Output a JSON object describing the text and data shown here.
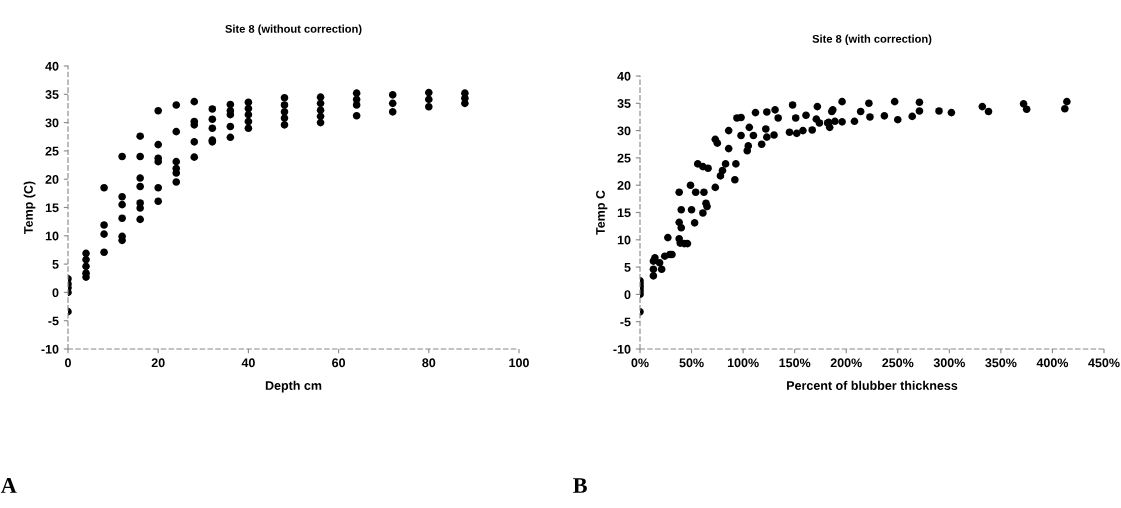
{
  "chart_data": [
    {
      "type": "scatter",
      "title": "Site 8 (without correction)",
      "xlabel": "Depth cm",
      "ylabel": "Temp (C)",
      "annotations": [
        "A"
      ],
      "marker": "circle",
      "grid": false,
      "xlim": [
        0,
        100
      ],
      "xticks": [
        0,
        20,
        40,
        60,
        80,
        100
      ],
      "ylim": [
        -10,
        40
      ],
      "yticks": [
        -10,
        -5,
        0,
        5,
        10,
        15,
        20,
        25,
        30,
        35,
        40
      ],
      "series": [
        {
          "color": "#000000",
          "x": [
            0,
            0,
            0,
            0,
            0,
            4,
            4,
            4,
            4,
            4,
            8,
            8,
            8,
            8,
            12,
            12,
            12,
            12,
            12,
            12,
            16,
            16,
            16,
            16,
            16,
            16,
            16,
            20,
            20,
            20,
            20,
            20,
            20,
            24,
            24,
            24,
            24,
            24,
            24,
            28,
            28,
            28,
            28,
            28,
            32,
            32,
            32,
            32,
            32,
            36,
            36,
            36,
            36,
            36,
            40,
            40,
            40,
            40,
            40,
            48,
            48,
            48,
            48,
            48,
            56,
            56,
            56,
            56,
            56,
            64,
            64,
            64,
            64,
            72,
            72,
            72,
            80,
            80,
            80,
            88,
            88,
            88
          ],
          "values": [
            -3.4,
            0,
            0.8,
            1.5,
            2.4,
            6.9,
            5.8,
            4.6,
            3.4,
            2.7,
            18.5,
            11.9,
            10.3,
            7.1,
            24,
            16.9,
            15.5,
            13.1,
            9.9,
            9.2,
            27.6,
            24,
            20.2,
            18.7,
            15.8,
            14.9,
            12.9,
            32.1,
            26.1,
            23.7,
            23.1,
            18.5,
            16.1,
            33.1,
            28.4,
            23.1,
            21.9,
            21.1,
            19.5,
            33.7,
            30.2,
            29.6,
            26.6,
            23.9,
            32.4,
            30.6,
            29,
            26.9,
            26.6,
            33.2,
            32.1,
            31.4,
            29.3,
            27.4,
            33.6,
            32.5,
            31.4,
            30.2,
            29,
            34.4,
            33.1,
            31.9,
            30.8,
            29.6,
            34.5,
            33.4,
            32.2,
            31.1,
            30,
            35.2,
            34.1,
            33.1,
            31.2,
            34.9,
            33.4,
            31.9,
            35.3,
            34.1,
            32.8,
            35.2,
            34.3,
            33.4
          ]
        }
      ]
    },
    {
      "type": "scatter",
      "title": "Site 8 (with correction)",
      "xlabel": "Percent of blubber thickness",
      "ylabel": "Temp C",
      "annotations": [
        "B"
      ],
      "marker": "circle",
      "grid": false,
      "xlim": [
        0,
        450
      ],
      "xticks": [
        {
          "value": 0,
          "label": "0%"
        },
        {
          "value": 50,
          "label": "50%"
        },
        {
          "value": 100,
          "label": "100%"
        },
        {
          "value": 150,
          "label": "150%"
        },
        {
          "value": 200,
          "label": "200%"
        },
        {
          "value": 250,
          "label": "250%"
        },
        {
          "value": 300,
          "label": "300%"
        },
        {
          "value": 350,
          "label": "350%"
        },
        {
          "value": 400,
          "label": "400%"
        },
        {
          "value": 450,
          "label": "450%"
        }
      ],
      "ylim": [
        -10,
        40
      ],
      "yticks": [
        -10,
        -5,
        0,
        5,
        10,
        15,
        20,
        25,
        30,
        35,
        40
      ],
      "series": [
        {
          "color": "#000000",
          "x": [
            0,
            0,
            0,
            0,
            0,
            0,
            0,
            13,
            13,
            13,
            14.5,
            21,
            19,
            24,
            29,
            31,
            27,
            38,
            39,
            43,
            46,
            38,
            40,
            40,
            38,
            49,
            50,
            53,
            54,
            62,
            61,
            64,
            65,
            56,
            61,
            66,
            73,
            73,
            75,
            78,
            80,
            83,
            86,
            86,
            92,
            93,
            94,
            98,
            98,
            106,
            110,
            104,
            105,
            112,
            123,
            131,
            134,
            122,
            118,
            123,
            130,
            145,
            148,
            151,
            152,
            158,
            161,
            167,
            172,
            171,
            174,
            183,
            184,
            187,
            189,
            196,
            196,
            186,
            182,
            208,
            214,
            222,
            223,
            237,
            247,
            250,
            264,
            271,
            271,
            290,
            302,
            332,
            338,
            372,
            375,
            414,
            412
          ],
          "values": [
            -3.2,
            0,
            0.5,
            1,
            1.5,
            2,
            2.5,
            3.4,
            4.6,
            6.1,
            6.7,
            4.6,
            5.8,
            7,
            7.3,
            7.3,
            10.4,
            10.2,
            9.4,
            9.3,
            9.3,
            13.2,
            12.2,
            15.5,
            18.7,
            20,
            15.5,
            13.1,
            18.7,
            18.7,
            14.9,
            16.7,
            16.1,
            23.9,
            23.4,
            23.1,
            19.6,
            28.4,
            27.7,
            21.7,
            22.7,
            23.9,
            26.7,
            30,
            21,
            23.9,
            32.3,
            32.4,
            29.1,
            30.6,
            29.1,
            26.3,
            27.2,
            33.3,
            33.4,
            33.8,
            32.3,
            30.3,
            27.5,
            28.8,
            29.2,
            29.7,
            34.7,
            32.3,
            29.5,
            30,
            32.8,
            30.1,
            34.4,
            32.1,
            31.4,
            31.5,
            30.6,
            33.8,
            31.7,
            35.3,
            31.6,
            33.5,
            31.4,
            31.7,
            33.5,
            35,
            32.5,
            32.7,
            35.3,
            32,
            32.6,
            35.2,
            33.6,
            33.6,
            33.3,
            34.4,
            33.5,
            34.9,
            33.9,
            35.3,
            34
          ]
        }
      ]
    }
  ]
}
